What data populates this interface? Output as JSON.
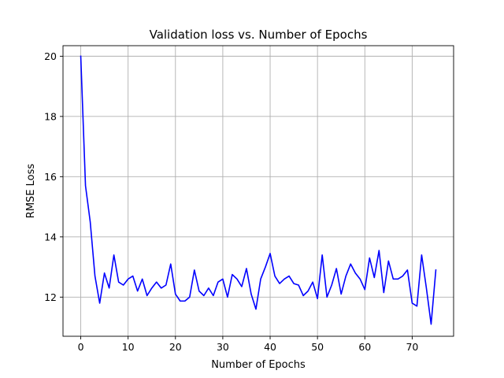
{
  "chart_data": {
    "type": "line",
    "title": "Validation loss vs. Number of Epochs",
    "xlabel": "Number of Epochs",
    "ylabel": "RMSE Loss",
    "xlim": [
      -3.75,
      78.75
    ],
    "ylim": [
      10.7,
      20.35
    ],
    "xticks": [
      0,
      10,
      20,
      30,
      40,
      50,
      60,
      70
    ],
    "yticks": [
      12,
      14,
      16,
      18,
      20
    ],
    "grid": true,
    "series": [
      {
        "color": "#0000ff",
        "x": [
          0,
          1,
          2,
          3,
          4,
          5,
          6,
          7,
          8,
          9,
          10,
          11,
          12,
          13,
          14,
          15,
          16,
          17,
          18,
          19,
          20,
          21,
          22,
          23,
          24,
          25,
          26,
          27,
          28,
          29,
          30,
          31,
          32,
          33,
          34,
          35,
          36,
          37,
          38,
          39,
          40,
          41,
          42,
          43,
          44,
          45,
          46,
          47,
          48,
          49,
          50,
          51,
          52,
          53,
          54,
          55,
          56,
          57,
          58,
          59,
          60,
          61,
          62,
          63,
          64,
          65,
          66,
          67,
          68,
          69,
          70,
          71,
          72,
          73,
          74,
          75
        ],
        "values": [
          20.0,
          15.7,
          14.5,
          12.7,
          11.8,
          12.8,
          12.3,
          13.4,
          12.5,
          12.4,
          12.6,
          12.7,
          12.2,
          12.6,
          12.05,
          12.3,
          12.5,
          12.3,
          12.4,
          13.1,
          12.1,
          11.87,
          11.87,
          12.0,
          12.9,
          12.2,
          12.05,
          12.3,
          12.05,
          12.5,
          12.6,
          12.0,
          12.75,
          12.6,
          12.35,
          12.95,
          12.1,
          11.6,
          12.6,
          13.0,
          13.45,
          12.7,
          12.45,
          12.6,
          12.7,
          12.45,
          12.4,
          12.05,
          12.2,
          12.5,
          11.95,
          13.4,
          12.0,
          12.4,
          12.95,
          12.1,
          12.7,
          13.1,
          12.8,
          12.6,
          12.25,
          13.3,
          12.65,
          13.55,
          12.15,
          13.2,
          12.6,
          12.6,
          12.7,
          12.9,
          11.8,
          11.7,
          13.4,
          12.3,
          11.1,
          12.9
        ]
      }
    ]
  }
}
